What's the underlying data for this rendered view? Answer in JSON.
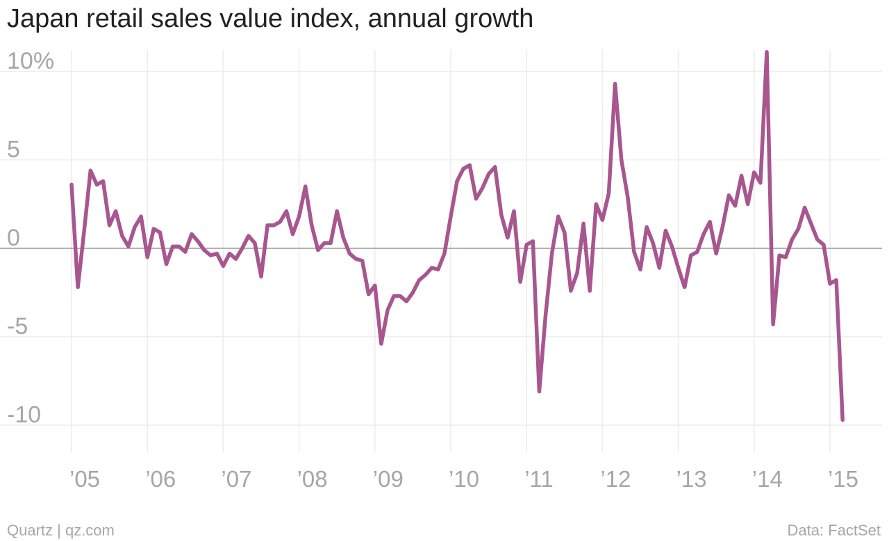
{
  "title": "Japan retail sales value index, annual growth",
  "footer": {
    "credit": "Quartz | qz.com",
    "source": "Data: FactSet"
  },
  "colors": {
    "line": "#a8568f",
    "grid": "#ececec",
    "zero": "#999999",
    "tick": "#a6a6a6"
  },
  "chart_data": {
    "type": "line",
    "title": "Japan retail sales value index, annual growth",
    "xlabel": "",
    "ylabel": "",
    "ylim": [
      -11.5,
      11.5
    ],
    "xlim": [
      "2005-01",
      "2015-05"
    ],
    "yticks": [
      {
        "v": 10,
        "label": "10%"
      },
      {
        "v": 5,
        "label": "5"
      },
      {
        "v": 0,
        "label": "0"
      },
      {
        "v": -5,
        "label": "-5"
      },
      {
        "v": -10,
        "label": "-10"
      }
    ],
    "xticks": [
      {
        "year": 2005,
        "label": "’05"
      },
      {
        "year": 2006,
        "label": "’06"
      },
      {
        "year": 2007,
        "label": "’07"
      },
      {
        "year": 2008,
        "label": "’08"
      },
      {
        "year": 2009,
        "label": "’09"
      },
      {
        "year": 2010,
        "label": "’10"
      },
      {
        "year": 2011,
        "label": "’11"
      },
      {
        "year": 2012,
        "label": "’12"
      },
      {
        "year": 2013,
        "label": "’13"
      },
      {
        "year": 2014,
        "label": "’14"
      },
      {
        "year": 2015,
        "label": "’15"
      }
    ],
    "grid": true,
    "series": [
      {
        "x_start": "2005-01",
        "frequency": "monthly",
        "values": [
          3.6,
          -2.2,
          1.0,
          4.4,
          3.6,
          3.8,
          1.3,
          2.1,
          0.7,
          0.1,
          1.2,
          1.8,
          -0.5,
          1.1,
          0.9,
          -0.9,
          0.1,
          0.1,
          -0.2,
          0.8,
          0.4,
          -0.1,
          -0.4,
          -0.3,
          -1.0,
          -0.3,
          -0.6,
          0.0,
          0.7,
          0.3,
          -1.6,
          1.3,
          1.3,
          1.5,
          2.1,
          0.8,
          1.8,
          3.5,
          1.3,
          -0.1,
          0.3,
          0.3,
          2.1,
          0.6,
          -0.3,
          -0.6,
          -0.7,
          -2.6,
          -2.1,
          -5.4,
          -3.5,
          -2.7,
          -2.7,
          -3.0,
          -2.5,
          -1.8,
          -1.5,
          -1.1,
          -1.2,
          -0.3,
          1.8,
          3.8,
          4.5,
          4.7,
          2.8,
          3.4,
          4.2,
          4.6,
          1.9,
          0.6,
          2.1,
          -1.9,
          0.2,
          0.4,
          -8.1,
          -3.8,
          -0.3,
          1.8,
          0.9,
          -2.4,
          -1.4,
          1.4,
          -2.4,
          2.5,
          1.6,
          3.1,
          9.3,
          5.0,
          2.9,
          -0.2,
          -1.2,
          1.2,
          0.3,
          -1.1,
          1.0,
          0.1,
          -1.1,
          -2.2,
          -0.4,
          -0.2,
          0.8,
          1.5,
          -0.3,
          1.2,
          3.0,
          2.4,
          4.1,
          2.5,
          4.3,
          3.7,
          11.1,
          -4.3,
          -0.4,
          -0.5,
          0.5,
          1.1,
          2.3,
          1.4,
          0.5,
          0.2,
          -2.0,
          -1.8,
          -9.7
        ]
      }
    ]
  }
}
